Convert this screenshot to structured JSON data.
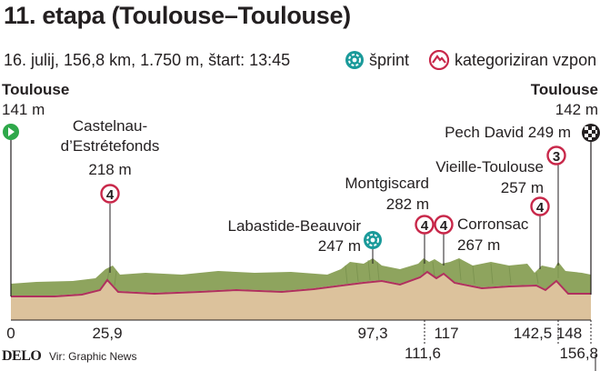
{
  "title": "11. etapa (Toulouse–Toulouse)",
  "subtitle": "16. julij, 156,8 km, 1.750 m, štart: 13:45",
  "legend": {
    "sprint_label": "šprint",
    "climb_label": "kategoriziran vzpon",
    "sprint_icon": "sprint-icon",
    "climb_icon": "climb-category-icon",
    "sprint_color": "#1a9a9a",
    "climb_color": "#c8284a"
  },
  "start": {
    "name": "Toulouse",
    "elevation": "141 m"
  },
  "finish": {
    "name": "Toulouse",
    "elevation": "142 m"
  },
  "points": [
    {
      "id": "castelnau",
      "name_line1": "Castelnau-",
      "name_line2": "d’Estrétefonds",
      "elevation": "218 m",
      "type": "climb",
      "category": "4",
      "km": "25,9"
    },
    {
      "id": "labastide",
      "name_line1": "Labastide-Beauvoir",
      "elevation": "247 m",
      "type": "sprint",
      "km": "97,3"
    },
    {
      "id": "montgiscard",
      "name_line1": "Montgiscard",
      "elevation": "282 m",
      "type": "climb",
      "category": "4",
      "km": "111,6"
    },
    {
      "id": "corronsac",
      "name_line1": "Corronsac",
      "elevation": "267 m",
      "type": "climb",
      "category": "4",
      "km": "117"
    },
    {
      "id": "vieille",
      "name_line1": "Vieille-Toulouse",
      "elevation": "257 m",
      "type": "climb",
      "category": "4",
      "km": "142,5"
    },
    {
      "id": "pechdavid",
      "name_line1": "Pech David 249 m",
      "type": "climb",
      "category": "3",
      "km": "148"
    }
  ],
  "km_axis": {
    "start": "0",
    "end": "156,8"
  },
  "footer": {
    "brand": "DELO",
    "source": "Vir: Graphic News"
  },
  "colors": {
    "ridge": "#8ea45e",
    "ground": "#dcc29c",
    "route": "#b0305e",
    "start": "#2ea84a"
  }
}
